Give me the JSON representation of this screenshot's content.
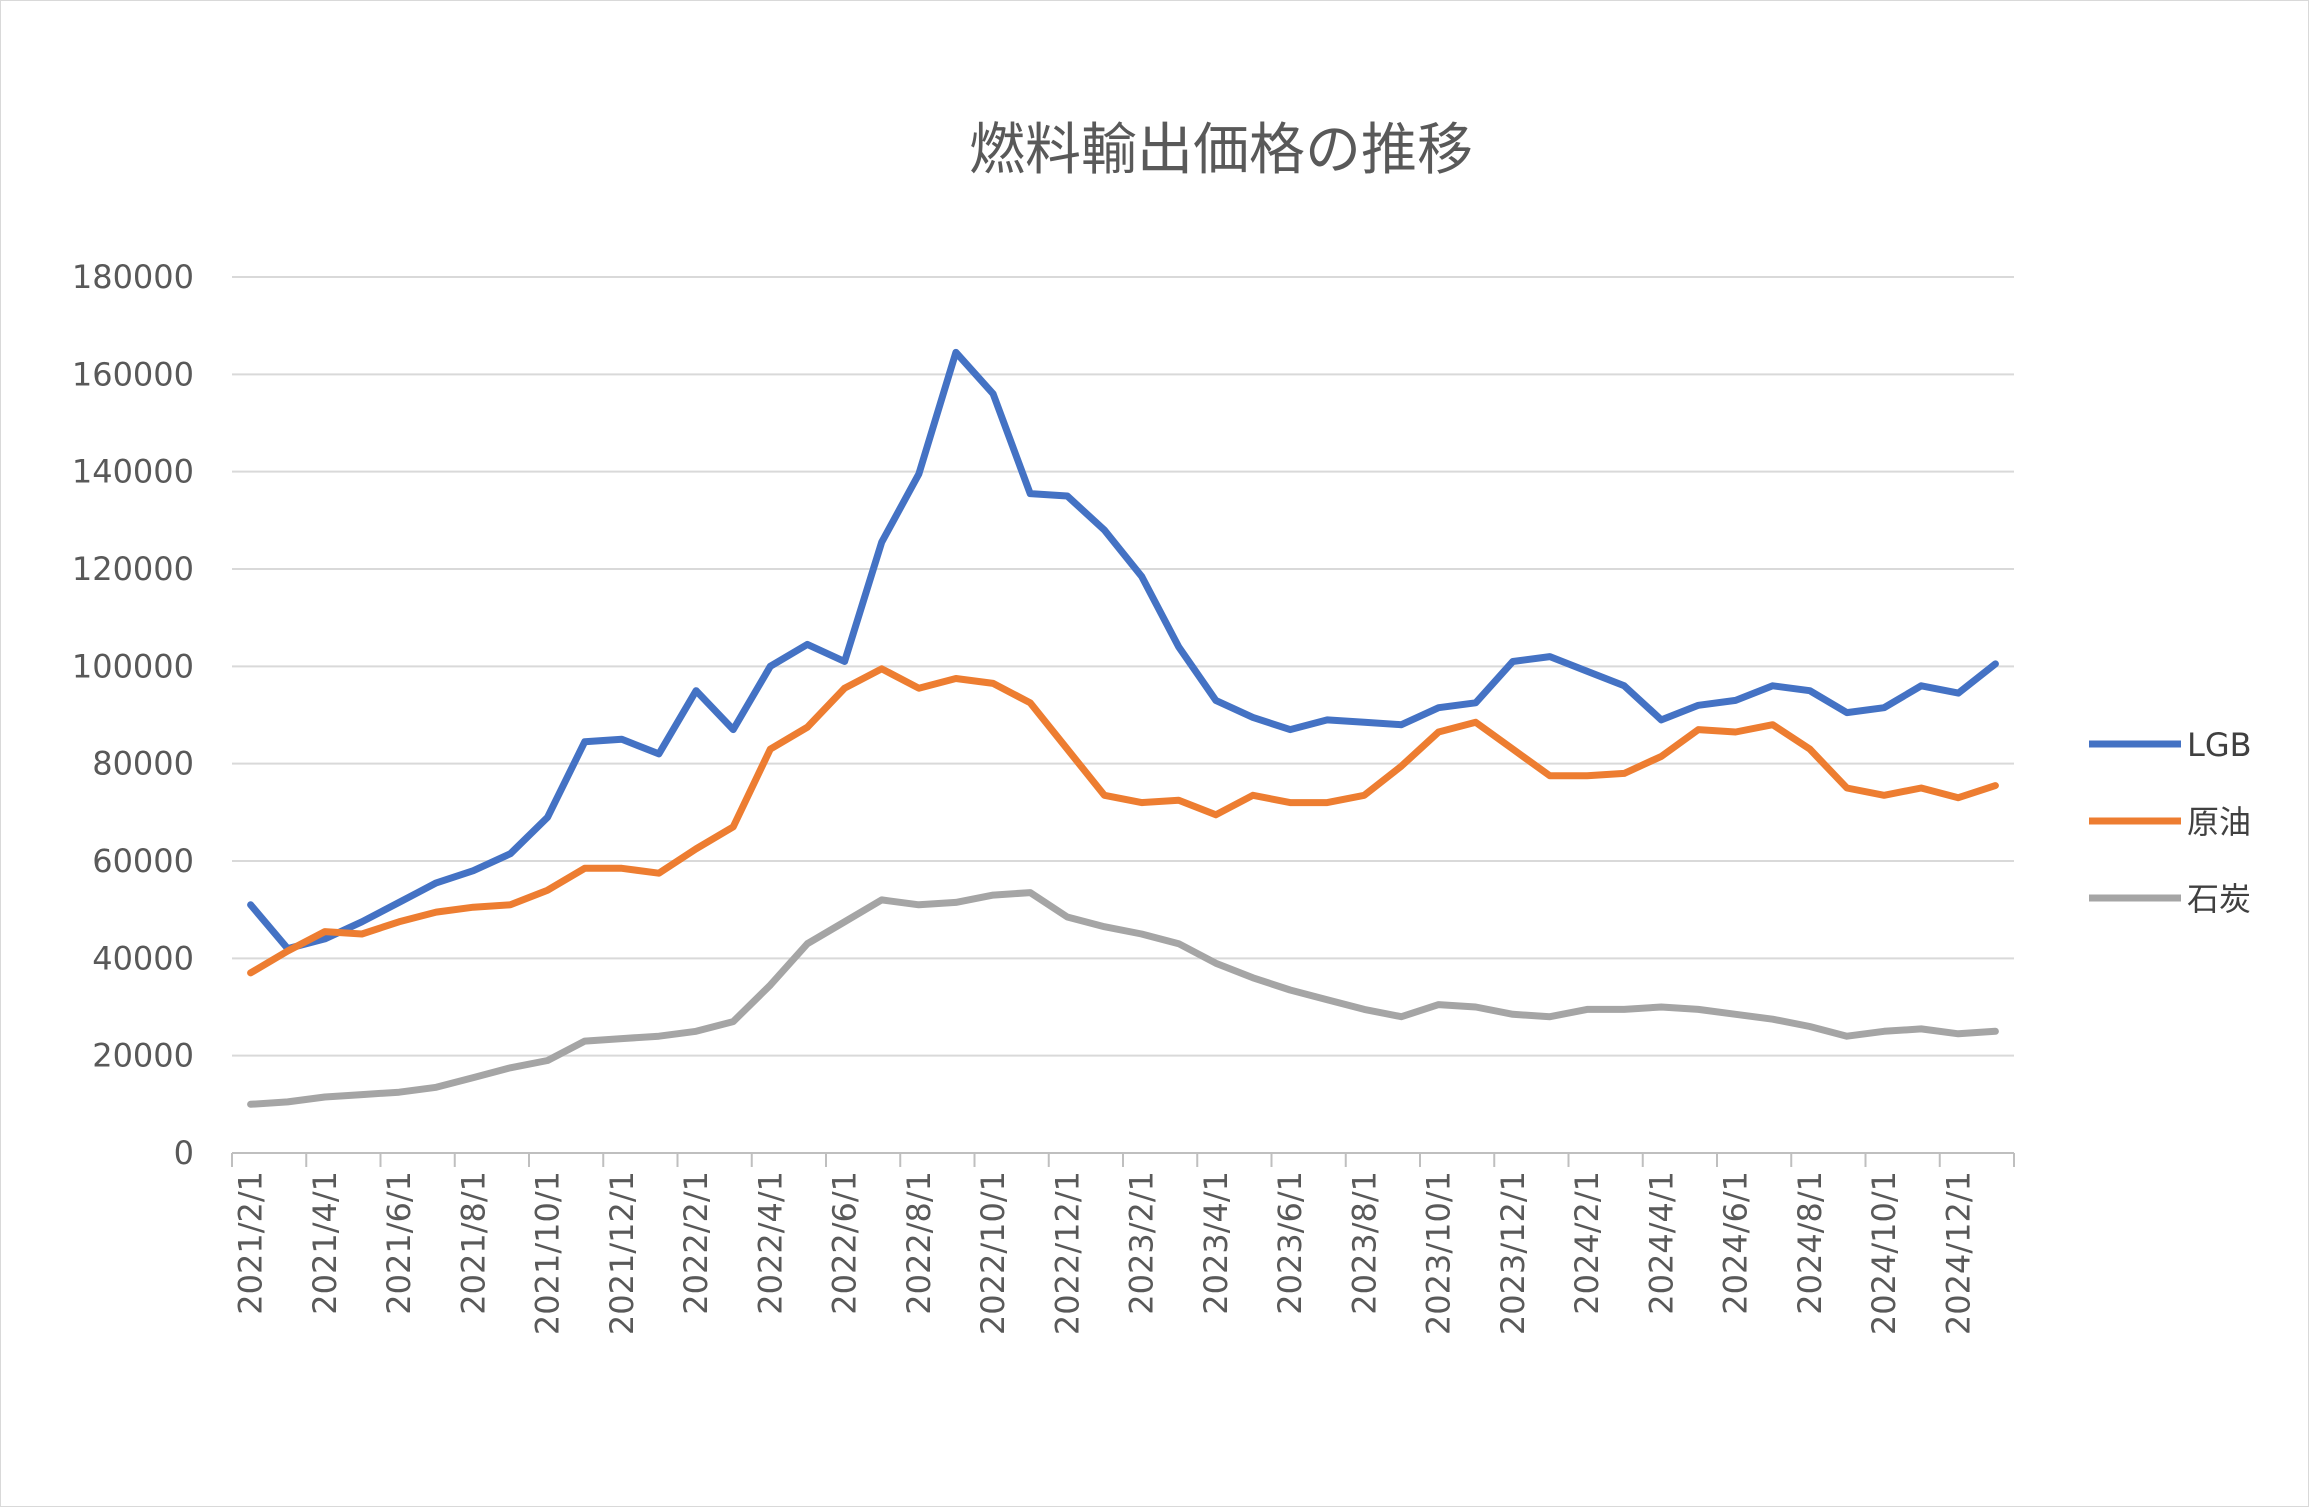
{
  "chart_data": {
    "type": "line",
    "title": "燃料輸出価格の推移",
    "xlabel": "",
    "ylabel": "",
    "ylim": [
      0,
      180000
    ],
    "yticks": [
      "0",
      "20000",
      "40000",
      "60000",
      "80000",
      "100000",
      "120000",
      "140000",
      "160000",
      "180000"
    ],
    "grid": true,
    "legend_position": "right",
    "x": [
      "2021/2/1",
      "2021/3/1",
      "2021/4/1",
      "2021/5/1",
      "2021/6/1",
      "2021/7/1",
      "2021/8/1",
      "2021/9/1",
      "2021/10/1",
      "2021/11/1",
      "2021/12/1",
      "2022/1/1",
      "2022/2/1",
      "2022/3/1",
      "2022/4/1",
      "2022/5/1",
      "2022/6/1",
      "2022/7/1",
      "2022/8/1",
      "2022/9/1",
      "2022/10/1",
      "2022/11/1",
      "2022/12/1",
      "2023/1/1",
      "2023/2/1",
      "2023/3/1",
      "2023/4/1",
      "2023/5/1",
      "2023/6/1",
      "2023/7/1",
      "2023/8/1",
      "2023/9/1",
      "2023/10/1",
      "2023/11/1",
      "2023/12/1",
      "2024/1/1",
      "2024/2/1",
      "2024/3/1",
      "2024/4/1",
      "2024/5/1",
      "2024/6/1",
      "2024/7/1",
      "2024/8/1",
      "2024/9/1",
      "2024/10/1",
      "2024/11/1",
      "2024/12/1",
      "2025/1/1"
    ],
    "xtick_labels": [
      "2021/2/1",
      "2021/4/1",
      "2021/6/1",
      "2021/8/1",
      "2021/10/1",
      "2021/12/1",
      "2022/2/1",
      "2022/4/1",
      "2022/6/1",
      "2022/8/1",
      "2022/10/1",
      "2022/12/1",
      "2023/2/1",
      "2023/4/1",
      "2023/6/1",
      "2023/8/1",
      "2023/10/1",
      "2023/12/1",
      "2024/2/1",
      "2024/4/1",
      "2024/6/1",
      "2024/8/1",
      "2024/10/1",
      "2024/12/1"
    ],
    "series": [
      {
        "name": "LGB",
        "color": "#4472C4",
        "values": [
          51000,
          42000,
          44000,
          47500,
          51500,
          55500,
          58000,
          61500,
          69000,
          84500,
          85000,
          82000,
          95000,
          87000,
          100000,
          104500,
          101000,
          125500,
          139500,
          164500,
          156000,
          135500,
          135000,
          128000,
          118500,
          104000,
          93000,
          89500,
          87000,
          89000,
          88500,
          88000,
          91500,
          92500,
          101000,
          102000,
          99000,
          96000,
          89000,
          92000,
          93000,
          96000,
          95000,
          90500,
          91500,
          96000,
          94500,
          100500
        ]
      },
      {
        "name": "原油",
        "color": "#ED7D31",
        "values": [
          37000,
          41500,
          45500,
          45000,
          47500,
          49500,
          50500,
          51000,
          54000,
          58500,
          58500,
          57500,
          62500,
          67000,
          83000,
          87500,
          95500,
          99500,
          95500,
          97500,
          96500,
          92500,
          83000,
          73500,
          72000,
          72500,
          69500,
          73500,
          72000,
          72000,
          73500,
          79500,
          86500,
          88500,
          83000,
          77500,
          77500,
          78000,
          81500,
          87000,
          86500,
          88000,
          83000,
          75000,
          73500,
          75000,
          73000,
          75500
        ]
      },
      {
        "name": "石炭",
        "color": "#A5A5A5",
        "values": [
          10000,
          10500,
          11500,
          12000,
          12500,
          13500,
          15500,
          17500,
          19000,
          23000,
          23500,
          24000,
          25000,
          27000,
          34500,
          43000,
          47500,
          52000,
          51000,
          51500,
          53000,
          53500,
          48500,
          46500,
          45000,
          43000,
          39000,
          36000,
          33500,
          31500,
          29500,
          28000,
          30500,
          30000,
          28500,
          28000,
          29500,
          29500,
          30000,
          29500,
          28500,
          27500,
          26000,
          24000,
          25000,
          25500,
          24500,
          25000
        ]
      }
    ]
  }
}
